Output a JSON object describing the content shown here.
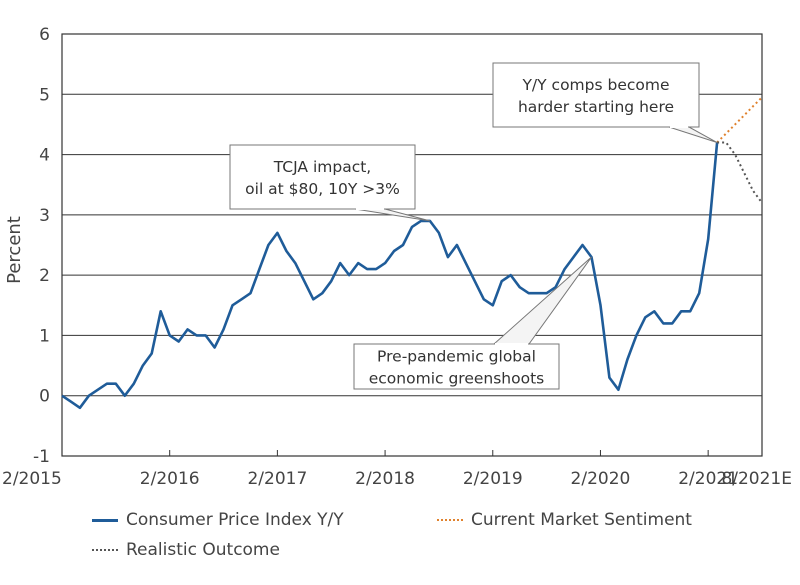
{
  "chart_data": {
    "type": "line",
    "ylabel": "Percent",
    "ylim": [
      -1,
      6
    ],
    "yticks": [
      "6",
      "5",
      "4",
      "3",
      "2",
      "1",
      "0",
      "-1"
    ],
    "xticks": [
      "2/2015",
      "2/2016",
      "2/2017",
      "2/2018",
      "2/2019",
      "2/2020",
      "2/2021",
      "8/2021E"
    ],
    "grid": "horizontal",
    "legend_position": "bottom",
    "colors": {
      "cpi": "#1f5c99",
      "market": "#e0822e",
      "realistic": "#555555",
      "grid": "#333333"
    },
    "series": [
      {
        "name": "Consumer Price Index Y/Y",
        "x_start": "2015-02",
        "values": [
          0.0,
          -0.1,
          -0.2,
          0.0,
          0.1,
          0.2,
          0.2,
          0.0,
          0.2,
          0.5,
          0.7,
          1.4,
          1.0,
          0.9,
          1.1,
          1.0,
          1.0,
          0.8,
          1.1,
          1.5,
          1.6,
          1.7,
          2.1,
          2.5,
          2.7,
          2.4,
          2.2,
          1.9,
          1.6,
          1.7,
          1.9,
          2.2,
          2.0,
          2.2,
          2.1,
          2.1,
          2.2,
          2.4,
          2.5,
          2.8,
          2.9,
          2.9,
          2.7,
          2.3,
          2.5,
          2.2,
          1.9,
          1.6,
          1.5,
          1.9,
          2.0,
          1.8,
          1.7,
          1.7,
          1.7,
          1.8,
          2.1,
          2.3,
          2.5,
          2.3,
          1.5,
          0.3,
          0.1,
          0.6,
          1.0,
          1.3,
          1.4,
          1.2,
          1.2,
          1.4,
          1.4,
          1.7,
          2.6,
          4.2
        ],
        "style": "solid"
      },
      {
        "name": "Current Market Sentiment",
        "x": [
          "2021-03",
          "2021-04",
          "2021-05",
          "2021-06",
          "2021-07",
          "2021-08"
        ],
        "values": [
          4.2,
          4.35,
          4.5,
          4.65,
          4.8,
          4.95
        ],
        "style": "dotted"
      },
      {
        "name": "Realistic Outcome",
        "x": [
          "2021-03",
          "2021-04",
          "2021-05",
          "2021-06",
          "2021-07",
          "2021-08"
        ],
        "values": [
          4.2,
          4.2,
          4.0,
          3.7,
          3.4,
          3.2
        ],
        "style": "dotted"
      }
    ],
    "annotations": [
      {
        "lines": [
          "Y/Y comps become",
          "harder starting here"
        ],
        "target": "2021-03"
      },
      {
        "lines": [
          "TCJA impact,",
          "oil at $80, 10Y >3%"
        ],
        "target": "2018-07"
      },
      {
        "lines": [
          "Pre-pandemic global",
          "economic greenshoots"
        ],
        "target": "2020-01"
      }
    ]
  }
}
